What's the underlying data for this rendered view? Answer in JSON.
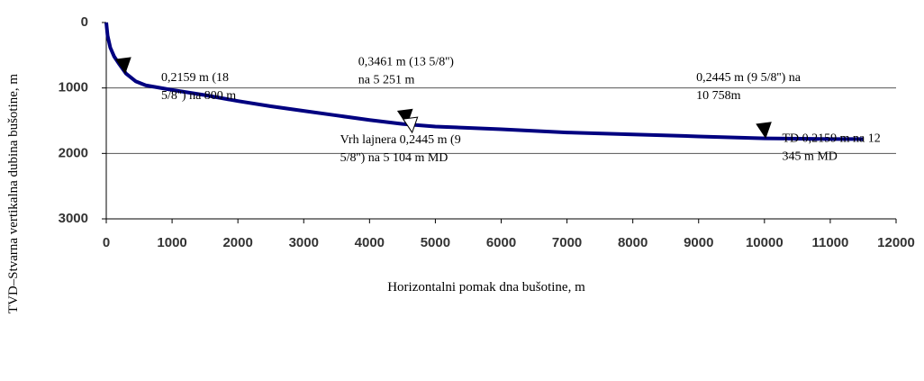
{
  "chart_data": {
    "type": "line",
    "xlabel": "Horizontalni pomak dna bušotine, m",
    "ylabel": "TVD–Stvarna vertikalna dubina bušotine, m",
    "x": [
      0,
      20,
      60,
      120,
      200,
      300,
      450,
      600,
      1000,
      1500,
      2000,
      2500,
      3000,
      3500,
      4000,
      4500,
      5000,
      6000,
      7000,
      8000,
      9000,
      10000,
      11000,
      11500
    ],
    "series": [
      {
        "color": "#000080",
        "values": [
          0,
          200,
          380,
          520,
          640,
          780,
          900,
          960,
          1030,
          1110,
          1200,
          1280,
          1350,
          1420,
          1490,
          1550,
          1590,
          1630,
          1680,
          1710,
          1740,
          1770,
          1780,
          1780
        ]
      }
    ],
    "xlim": [
      0,
      12000
    ],
    "xticks": [
      0,
      1000,
      2000,
      3000,
      4000,
      5000,
      6000,
      7000,
      8000,
      9000,
      10000,
      11000,
      12000
    ],
    "ylim": [
      0,
      3000
    ],
    "yticks": [
      0,
      1000,
      2000,
      3000
    ],
    "y_inverted": true,
    "grid": true,
    "annotations": [
      {
        "text": [
          "0,2159 m (18",
          "5/8'') na 800 m"
        ],
        "x": 260,
        "y": 660,
        "marker_color": "#000000"
      },
      {
        "text": [
          "0,3461 m (13 5/8'')",
          "na 5 251 m"
        ],
        "x": 4540,
        "y": 1450,
        "marker_color": "#000000"
      },
      {
        "text": [
          "Vrh lajnera 0,2445 m (9",
          "5/8'') na 5 104 m MD"
        ],
        "x": 4620,
        "y": 1570,
        "marker_color": "#ffffff"
      },
      {
        "text": [
          "0,2445 m (9 5/8'') na",
          "10 758m"
        ],
        "x": 9990,
        "y": 1650,
        "marker_color": "#000000"
      },
      {
        "text": [
          "TD 0,2159 m na 12",
          "345 m MD"
        ],
        "x": 11500,
        "y": 1780
      }
    ]
  }
}
